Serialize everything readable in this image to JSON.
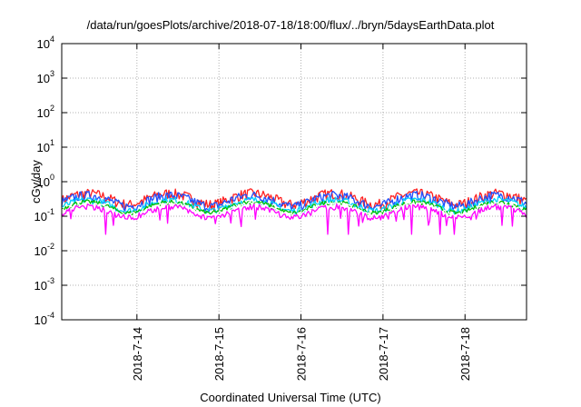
{
  "chart_data": {
    "type": "line",
    "title": "/data/run/goesPlots/archive/2018-07-18/18:00/flux/../bryn/5daysEarthData.plot",
    "xlabel": "Coordinated Universal Time (UTC)",
    "ylabel": "cGy/day",
    "yscale": "log",
    "ylim": [
      0.0001,
      10000
    ],
    "y_ticks": [
      {
        "base": "10",
        "exp": "4",
        "value": 10000
      },
      {
        "base": "10",
        "exp": "3",
        "value": 1000
      },
      {
        "base": "10",
        "exp": "2",
        "value": 100
      },
      {
        "base": "10",
        "exp": "1",
        "value": 10
      },
      {
        "base": "10",
        "exp": "0",
        "value": 1
      },
      {
        "base": "10",
        "exp": "-1",
        "value": 0.1
      },
      {
        "base": "10",
        "exp": "-2",
        "value": 0.01
      },
      {
        "base": "10",
        "exp": "-3",
        "value": 0.001
      },
      {
        "base": "10",
        "exp": "-4",
        "value": 0.0001
      }
    ],
    "xlim": [
      "2018-07-13 02:00",
      "2018-07-18 18:00"
    ],
    "x_ticks": [
      {
        "label": "2018-7-14",
        "value": "2018-07-14"
      },
      {
        "label": "2018-7-15",
        "value": "2018-07-15"
      },
      {
        "label": "2018-7-16",
        "value": "2018-07-16"
      },
      {
        "label": "2018-7-17",
        "value": "2018-07-17"
      },
      {
        "label": "2018-7-18",
        "value": "2018-07-18"
      }
    ],
    "grid": true,
    "legend": "none",
    "series": [
      {
        "color": "#ff2020",
        "level": 0.34,
        "variation": 0.18
      },
      {
        "color": "#1f4fff",
        "level": 0.3,
        "variation": 0.16
      },
      {
        "color": "#00d0ff",
        "level": 0.22,
        "variation": 0.12
      },
      {
        "color": "#00c000",
        "level": 0.19,
        "variation": 0.08
      },
      {
        "color": "#ffffff",
        "level": 0.17,
        "variation": 0.06
      },
      {
        "color": "#ff00ff",
        "level": 0.14,
        "variation": 0.1,
        "dips_to": 0.03
      }
    ]
  }
}
